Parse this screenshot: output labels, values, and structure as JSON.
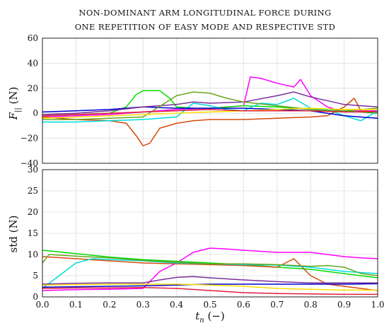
{
  "chart_data": [
    {
      "type": "line",
      "title": [
        "NON-DOMINANT ARM LONGITUDINAL FORCE DURING",
        "ONE REPETITION OF EASY MODE AND RESPECTIVE STD"
      ],
      "xlabel": "",
      "ylabel": "F|| (N)",
      "xlim": [
        0,
        1
      ],
      "ylim": [
        -40,
        60
      ],
      "yticks": [
        "60",
        "40",
        "20",
        "0",
        "−20",
        "−40"
      ],
      "grid": true,
      "series": [
        {
          "color": "#ff00ff",
          "x": [
            0,
            0.1,
            0.2,
            0.3,
            0.4,
            0.5,
            0.6,
            0.62,
            0.65,
            0.7,
            0.75,
            0.77,
            0.8,
            0.85,
            0.9,
            0.95,
            1.0
          ],
          "y": [
            -3,
            -2,
            -1,
            1,
            3,
            4,
            6,
            29,
            28,
            24,
            21,
            27,
            14,
            5,
            1,
            2,
            2
          ]
        },
        {
          "color": "#00dd00",
          "x": [
            0,
            0.1,
            0.2,
            0.25,
            0.28,
            0.3,
            0.35,
            0.38,
            0.4,
            0.45,
            0.5,
            0.6,
            0.7,
            0.8,
            0.9,
            1.0
          ],
          "y": [
            -2,
            -1,
            0,
            5,
            15,
            18,
            18,
            12,
            5,
            4,
            4,
            6,
            5,
            3,
            2,
            0
          ]
        },
        {
          "color": "#d64b0a",
          "x": [
            0,
            0.1,
            0.2,
            0.25,
            0.28,
            0.3,
            0.32,
            0.35,
            0.4,
            0.45,
            0.5,
            0.6,
            0.7,
            0.8,
            0.85,
            0.9,
            0.93,
            0.95,
            1.0
          ],
          "y": [
            -3,
            -5,
            -6,
            -8,
            -18,
            -26,
            -24,
            -12,
            -8,
            -6,
            -5,
            -5,
            -4,
            -3,
            -2,
            5,
            12,
            2,
            1
          ]
        },
        {
          "color": "#00dcdc",
          "x": [
            0,
            0.1,
            0.2,
            0.3,
            0.35,
            0.4,
            0.45,
            0.5,
            0.55,
            0.6,
            0.65,
            0.7,
            0.75,
            0.8,
            0.85,
            0.9,
            0.95,
            1.0
          ],
          "y": [
            -7,
            -7,
            -6,
            -5,
            -4,
            -3,
            8,
            6,
            3,
            2,
            8,
            7,
            12,
            4,
            3,
            -2,
            -6,
            2
          ]
        },
        {
          "color": "#0000cc",
          "x": [
            0,
            0.1,
            0.2,
            0.3,
            0.4,
            0.5,
            0.6,
            0.7,
            0.8,
            0.9,
            1.0
          ],
          "y": [
            1,
            2,
            3,
            5,
            4,
            4,
            4,
            3,
            2,
            -2,
            -4
          ]
        },
        {
          "color": "#7b2f9a",
          "x": [
            0,
            0.1,
            0.2,
            0.3,
            0.4,
            0.45,
            0.5,
            0.6,
            0.7,
            0.75,
            0.8,
            0.9,
            1.0
          ],
          "y": [
            -1,
            0,
            2,
            5,
            7,
            9,
            8,
            9,
            14,
            17,
            13,
            7,
            5
          ]
        },
        {
          "color": "#66a61e",
          "x": [
            0,
            0.1,
            0.2,
            0.3,
            0.4,
            0.45,
            0.5,
            0.55,
            0.6,
            0.7,
            0.8,
            0.85,
            0.9,
            1.0
          ],
          "y": [
            -5,
            -5,
            -4,
            -3,
            14,
            17,
            16,
            12,
            9,
            6,
            3,
            2,
            2,
            4
          ]
        },
        {
          "color": "#ffdd00",
          "x": [
            0,
            0.1,
            0.2,
            0.3,
            0.4,
            0.5,
            0.6,
            0.7,
            0.8,
            0.9,
            1.0
          ],
          "y": [
            -4,
            -3,
            -2,
            -1,
            0,
            1,
            2,
            3,
            4,
            3,
            3
          ]
        },
        {
          "color": "#e01e3c",
          "x": [
            0,
            0.1,
            0.2,
            0.3,
            0.4,
            0.5,
            0.6,
            0.7,
            0.8,
            0.9,
            1.0
          ],
          "y": [
            -2,
            -1,
            0,
            1,
            2,
            3,
            2,
            2,
            2,
            1,
            1
          ]
        }
      ]
    },
    {
      "type": "line",
      "title": "",
      "xlabel": "t_n (−)",
      "ylabel": "std (N)",
      "xlim": [
        0,
        1
      ],
      "ylim": [
        0,
        30
      ],
      "xticks": [
        "0.0",
        "0.1",
        "0.2",
        "0.3",
        "0.4",
        "0.5",
        "0.6",
        "0.7",
        "0.8",
        "0.9",
        "1.0"
      ],
      "yticks": [
        "30",
        "25",
        "20",
        "15",
        "10",
        "5",
        "0"
      ],
      "grid": true,
      "series": [
        {
          "color": "#ff00ff",
          "x": [
            0,
            0.1,
            0.2,
            0.3,
            0.35,
            0.4,
            0.45,
            0.5,
            0.55,
            0.6,
            0.7,
            0.8,
            0.9,
            0.95,
            1.0
          ],
          "y": [
            1.5,
            1.7,
            1.8,
            2.0,
            6.0,
            8.0,
            10.5,
            11.5,
            11.3,
            11.0,
            10.5,
            10.5,
            9.5,
            9.2,
            9.0
          ]
        },
        {
          "color": "#00dd00",
          "x": [
            0,
            0.1,
            0.2,
            0.3,
            0.4,
            0.5,
            0.6,
            0.7,
            0.8,
            0.9,
            1.0
          ],
          "y": [
            11.0,
            10.2,
            9.4,
            8.8,
            8.4,
            8.0,
            7.6,
            7.0,
            6.5,
            5.5,
            4.5
          ]
        },
        {
          "color": "#d64b0a",
          "x": [
            0,
            0.1,
            0.2,
            0.3,
            0.4,
            0.5,
            0.6,
            0.7,
            0.75,
            0.8,
            0.85,
            0.9,
            1.0
          ],
          "y": [
            9.5,
            9.0,
            8.5,
            8.0,
            7.8,
            7.6,
            7.4,
            7.0,
            9.0,
            5.0,
            3.0,
            2.5,
            1.5
          ]
        },
        {
          "color": "#00dcdc",
          "x": [
            0,
            0.05,
            0.1,
            0.15,
            0.2,
            0.3,
            0.4,
            0.5,
            0.6,
            0.7,
            0.8,
            0.9,
            1.0
          ],
          "y": [
            2.0,
            5.0,
            8.0,
            9.0,
            8.8,
            8.5,
            8.0,
            7.8,
            7.6,
            7.5,
            7.0,
            6.0,
            5.5
          ]
        },
        {
          "color": "#0000cc",
          "x": [
            0,
            0.1,
            0.2,
            0.3,
            0.4,
            0.5,
            0.6,
            0.7,
            0.8,
            0.9,
            1.0
          ],
          "y": [
            2.3,
            2.4,
            2.5,
            2.6,
            2.8,
            3.0,
            3.0,
            3.0,
            3.0,
            3.0,
            3.1
          ]
        },
        {
          "color": "#7b2f9a",
          "x": [
            0,
            0.1,
            0.2,
            0.3,
            0.35,
            0.4,
            0.45,
            0.5,
            0.6,
            0.7,
            0.8,
            0.9,
            1.0
          ],
          "y": [
            3.0,
            3.2,
            3.3,
            3.3,
            4.0,
            4.6,
            4.8,
            4.5,
            4.0,
            3.6,
            3.3,
            3.3,
            3.3
          ]
        },
        {
          "color": "#66a61e",
          "x": [
            0,
            0.02,
            0.1,
            0.2,
            0.3,
            0.4,
            0.5,
            0.6,
            0.7,
            0.8,
            0.85,
            0.9,
            0.95,
            1.0
          ],
          "y": [
            8.0,
            10.0,
            9.6,
            9.2,
            8.6,
            8.2,
            7.8,
            7.8,
            7.6,
            7.2,
            7.4,
            7.0,
            5.5,
            5.0
          ]
        },
        {
          "color": "#ffdd00",
          "x": [
            0,
            0.1,
            0.2,
            0.3,
            0.4,
            0.5,
            0.6,
            0.7,
            0.8,
            0.9,
            1.0
          ],
          "y": [
            2.8,
            2.9,
            3.0,
            3.0,
            3.0,
            2.8,
            2.5,
            2.0,
            1.8,
            1.6,
            1.6
          ]
        },
        {
          "color": "#e01e3c",
          "x": [
            0,
            0.1,
            0.2,
            0.3,
            0.4,
            0.5,
            0.6,
            0.7,
            0.8,
            0.9,
            1.0
          ],
          "y": [
            2.0,
            2.1,
            2.1,
            2.2,
            2.0,
            1.5,
            1.0,
            0.8,
            0.7,
            0.6,
            0.6
          ]
        }
      ]
    }
  ]
}
